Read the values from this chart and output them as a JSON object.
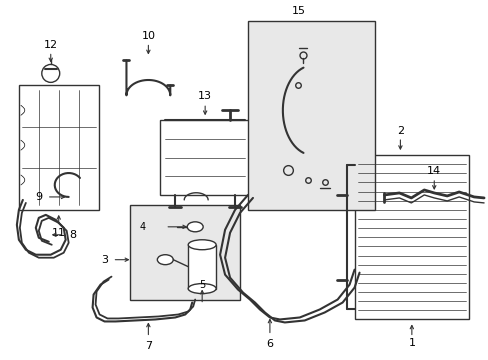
{
  "bg_color": "#ffffff",
  "line_color": "#333333",
  "label_color": "#000000",
  "figsize": [
    4.89,
    3.6
  ],
  "dpi": 100,
  "lw": 1.0
}
